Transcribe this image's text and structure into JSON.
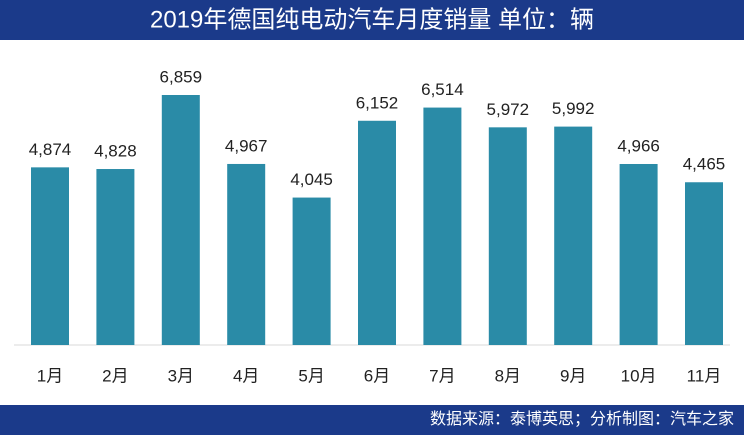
{
  "chart_data": {
    "type": "bar",
    "title": "2019年德国纯电动汽车月度销量  单位：辆",
    "source": "数据来源：泰博英思；分析制图：汽车之家",
    "categories": [
      "1月",
      "2月",
      "3月",
      "4月",
      "5月",
      "6月",
      "7月",
      "8月",
      "9月",
      "10月",
      "11月"
    ],
    "values": [
      4874,
      4828,
      6859,
      4967,
      4045,
      6152,
      6514,
      5972,
      5992,
      4966,
      4465
    ],
    "value_labels": [
      "4,874",
      "4,828",
      "6,859",
      "4,967",
      "4,045",
      "6,152",
      "6,514",
      "5,972",
      "5,992",
      "4,966",
      "4,465"
    ],
    "color": "#2a8ba7"
  }
}
